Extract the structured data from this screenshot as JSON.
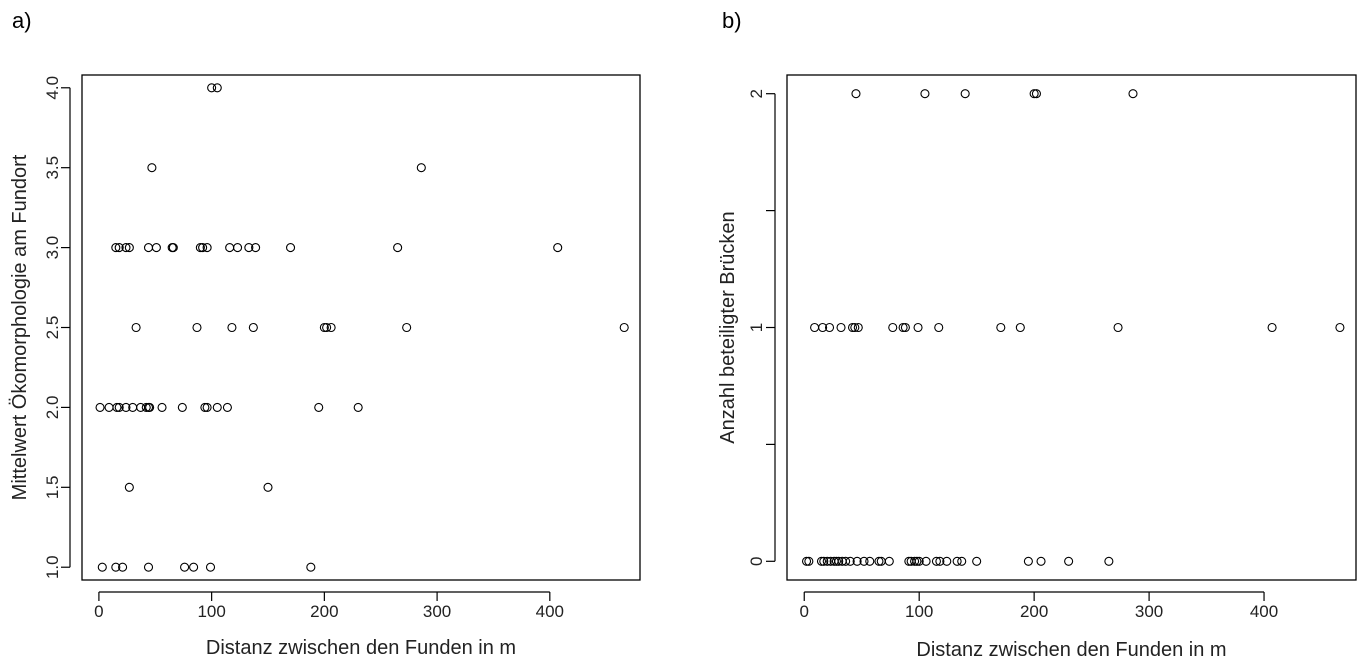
{
  "chart_data": [
    {
      "type": "scatter",
      "panel_label": "a)",
      "title": "",
      "xlabel": "Distanz zwischen den Funden in m",
      "ylabel": "Mittelwert Ökomorphologie am Fundort",
      "xlim": [
        -15,
        480
      ],
      "ylim": [
        0.92,
        4.08
      ],
      "xticks": [
        0,
        100,
        200,
        300,
        400
      ],
      "xtick_labels": [
        "0",
        "100",
        "200",
        "300",
        "400"
      ],
      "yticks": [
        1.0,
        1.5,
        2.0,
        2.5,
        3.0,
        3.5,
        4.0
      ],
      "ytick_labels": [
        "1.0",
        "1.5",
        "2.0",
        "2.5",
        "3.0",
        "3.5",
        "4.0"
      ],
      "grid": false,
      "legend": "none",
      "points": [
        {
          "x": 100,
          "y": 4.0
        },
        {
          "x": 105,
          "y": 4.0
        },
        {
          "x": 47,
          "y": 3.5
        },
        {
          "x": 286,
          "y": 3.5
        },
        {
          "x": 15,
          "y": 3.0
        },
        {
          "x": 18,
          "y": 3.0
        },
        {
          "x": 24,
          "y": 3.0
        },
        {
          "x": 27,
          "y": 3.0
        },
        {
          "x": 44,
          "y": 3.0
        },
        {
          "x": 51,
          "y": 3.0
        },
        {
          "x": 65,
          "y": 3.0
        },
        {
          "x": 66,
          "y": 3.0
        },
        {
          "x": 90,
          "y": 3.0
        },
        {
          "x": 92,
          "y": 3.0
        },
        {
          "x": 96,
          "y": 3.0
        },
        {
          "x": 116,
          "y": 3.0
        },
        {
          "x": 123,
          "y": 3.0
        },
        {
          "x": 133,
          "y": 3.0
        },
        {
          "x": 139,
          "y": 3.0
        },
        {
          "x": 170,
          "y": 3.0
        },
        {
          "x": 265,
          "y": 3.0
        },
        {
          "x": 407,
          "y": 3.0
        },
        {
          "x": 33,
          "y": 2.5
        },
        {
          "x": 87,
          "y": 2.5
        },
        {
          "x": 118,
          "y": 2.5
        },
        {
          "x": 137,
          "y": 2.5
        },
        {
          "x": 200,
          "y": 2.5
        },
        {
          "x": 202,
          "y": 2.5
        },
        {
          "x": 206,
          "y": 2.5
        },
        {
          "x": 273,
          "y": 2.5
        },
        {
          "x": 466,
          "y": 2.5
        },
        {
          "x": 1,
          "y": 2.0
        },
        {
          "x": 9,
          "y": 2.0
        },
        {
          "x": 16,
          "y": 2.0
        },
        {
          "x": 18,
          "y": 2.0
        },
        {
          "x": 24,
          "y": 2.0
        },
        {
          "x": 30,
          "y": 2.0
        },
        {
          "x": 37,
          "y": 2.0
        },
        {
          "x": 42,
          "y": 2.0
        },
        {
          "x": 44,
          "y": 2.0
        },
        {
          "x": 45,
          "y": 2.0
        },
        {
          "x": 56,
          "y": 2.0
        },
        {
          "x": 74,
          "y": 2.0
        },
        {
          "x": 94,
          "y": 2.0
        },
        {
          "x": 96,
          "y": 2.0
        },
        {
          "x": 105,
          "y": 2.0
        },
        {
          "x": 114,
          "y": 2.0
        },
        {
          "x": 195,
          "y": 2.0
        },
        {
          "x": 230,
          "y": 2.0
        },
        {
          "x": 27,
          "y": 1.5
        },
        {
          "x": 150,
          "y": 1.5
        },
        {
          "x": 3,
          "y": 1.0
        },
        {
          "x": 15,
          "y": 1.0
        },
        {
          "x": 21,
          "y": 1.0
        },
        {
          "x": 44,
          "y": 1.0
        },
        {
          "x": 76,
          "y": 1.0
        },
        {
          "x": 84,
          "y": 1.0
        },
        {
          "x": 99,
          "y": 1.0
        },
        {
          "x": 188,
          "y": 1.0
        }
      ]
    },
    {
      "type": "scatter",
      "panel_label": "b)",
      "title": "",
      "xlabel": "Distanz zwischen den Funden in m",
      "ylabel": "Anzahl beteiligter Brücken",
      "xlim": [
        -15,
        480
      ],
      "ylim": [
        -0.08,
        2.08
      ],
      "xticks": [
        0,
        100,
        200,
        300,
        400
      ],
      "xtick_labels": [
        "0",
        "100",
        "200",
        "300",
        "400"
      ],
      "yticks": [
        0,
        0.5,
        1,
        1.5,
        2
      ],
      "ytick_labels": [
        "0",
        "",
        "1",
        "",
        "2"
      ],
      "grid": false,
      "legend": "none",
      "points": [
        {
          "x": 45,
          "y": 2
        },
        {
          "x": 105,
          "y": 2
        },
        {
          "x": 140,
          "y": 2
        },
        {
          "x": 200,
          "y": 2
        },
        {
          "x": 202,
          "y": 2
        },
        {
          "x": 286,
          "y": 2
        },
        {
          "x": 9,
          "y": 1
        },
        {
          "x": 16,
          "y": 1
        },
        {
          "x": 22,
          "y": 1
        },
        {
          "x": 32,
          "y": 1
        },
        {
          "x": 42,
          "y": 1
        },
        {
          "x": 44,
          "y": 1
        },
        {
          "x": 47,
          "y": 1
        },
        {
          "x": 77,
          "y": 1
        },
        {
          "x": 86,
          "y": 1
        },
        {
          "x": 88,
          "y": 1
        },
        {
          "x": 99,
          "y": 1
        },
        {
          "x": 117,
          "y": 1
        },
        {
          "x": 171,
          "y": 1
        },
        {
          "x": 188,
          "y": 1
        },
        {
          "x": 273,
          "y": 1
        },
        {
          "x": 407,
          "y": 1
        },
        {
          "x": 466,
          "y": 1
        },
        {
          "x": 2,
          "y": 0
        },
        {
          "x": 4,
          "y": 0
        },
        {
          "x": 15,
          "y": 0
        },
        {
          "x": 17,
          "y": 0
        },
        {
          "x": 20,
          "y": 0
        },
        {
          "x": 23,
          "y": 0
        },
        {
          "x": 26,
          "y": 0
        },
        {
          "x": 28,
          "y": 0
        },
        {
          "x": 30,
          "y": 0
        },
        {
          "x": 33,
          "y": 0
        },
        {
          "x": 36,
          "y": 0
        },
        {
          "x": 40,
          "y": 0
        },
        {
          "x": 46,
          "y": 0
        },
        {
          "x": 52,
          "y": 0
        },
        {
          "x": 57,
          "y": 0
        },
        {
          "x": 65,
          "y": 0
        },
        {
          "x": 67,
          "y": 0
        },
        {
          "x": 74,
          "y": 0
        },
        {
          "x": 91,
          "y": 0
        },
        {
          "x": 93,
          "y": 0
        },
        {
          "x": 96,
          "y": 0
        },
        {
          "x": 98,
          "y": 0
        },
        {
          "x": 100,
          "y": 0
        },
        {
          "x": 106,
          "y": 0
        },
        {
          "x": 115,
          "y": 0
        },
        {
          "x": 118,
          "y": 0
        },
        {
          "x": 124,
          "y": 0
        },
        {
          "x": 133,
          "y": 0
        },
        {
          "x": 137,
          "y": 0
        },
        {
          "x": 150,
          "y": 0
        },
        {
          "x": 195,
          "y": 0
        },
        {
          "x": 206,
          "y": 0
        },
        {
          "x": 230,
          "y": 0
        },
        {
          "x": 265,
          "y": 0
        }
      ]
    }
  ]
}
